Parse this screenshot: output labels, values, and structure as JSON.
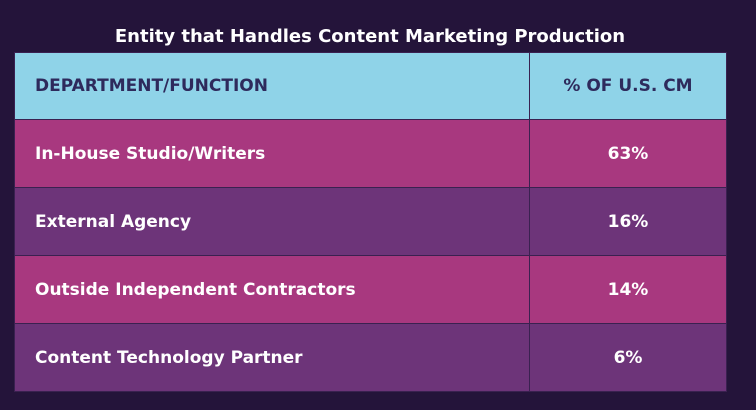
{
  "title": "Entity that Handles Content Marketing Production",
  "table": {
    "header": [
      "DEPARTMENT/FUNCTION",
      "% OF U.S. CM"
    ],
    "rows": [
      [
        "In-House Studio/Writers",
        "63%"
      ],
      [
        "External Agency",
        "16%"
      ],
      [
        "Outside Independent Contractors",
        "14%"
      ],
      [
        "Content Technology Partner",
        "6%"
      ]
    ]
  }
}
